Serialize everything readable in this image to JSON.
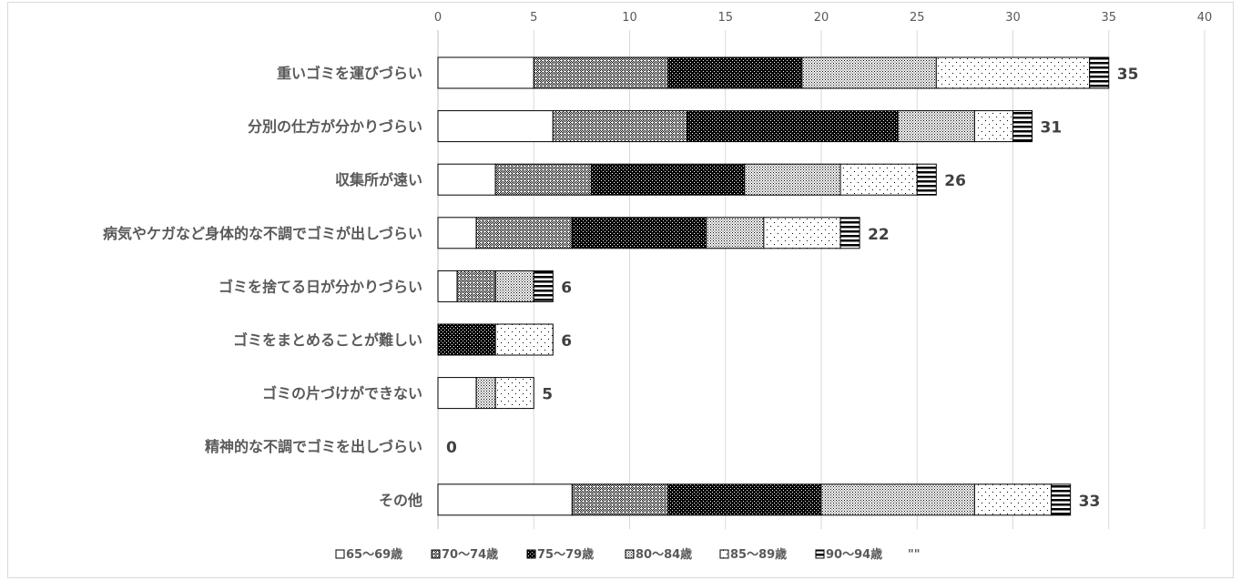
{
  "chart_data": {
    "type": "bar",
    "orientation": "horizontal",
    "stacked": true,
    "title": "",
    "xlabel": "",
    "ylabel": "",
    "xlim": [
      0,
      40
    ],
    "x_ticks": [
      0,
      5,
      10,
      15,
      20,
      25,
      30,
      35,
      40
    ],
    "grid": true,
    "legend_position": "bottom",
    "categories": [
      "重いゴミを運びづらい",
      "分別の仕方が分かりづらい",
      "収集所が遠い",
      "病気やケガなど身体的な不調でゴミが出しづらい",
      "ゴミを捨てる日が分かりづらい",
      "ゴミをまとめることが難しい",
      "ゴミの片づけができない",
      "精神的な不調でゴミを出しづらい",
      "その他"
    ],
    "series": [
      {
        "name": "65～69歳",
        "pattern": "blank",
        "values": [
          5,
          6,
          3,
          2,
          1,
          0,
          2,
          0,
          7
        ]
      },
      {
        "name": "70～74歳",
        "pattern": "crosshatch",
        "values": [
          7,
          7,
          5,
          5,
          2,
          0,
          0,
          0,
          5
        ]
      },
      {
        "name": "75～79歳",
        "pattern": "dark-dots",
        "values": [
          7,
          11,
          8,
          7,
          0,
          3,
          0,
          0,
          8
        ]
      },
      {
        "name": "80～84歳",
        "pattern": "dense-dots",
        "values": [
          7,
          4,
          5,
          3,
          2,
          0,
          1,
          0,
          8
        ]
      },
      {
        "name": "85～89歳",
        "pattern": "sparse-dots",
        "values": [
          8,
          2,
          4,
          4,
          0,
          3,
          2,
          0,
          4
        ]
      },
      {
        "name": "90～94歳",
        "pattern": "horiz-stripes",
        "values": [
          1,
          1,
          1,
          1,
          1,
          0,
          0,
          0,
          1
        ]
      }
    ],
    "totals": [
      35,
      31,
      26,
      22,
      6,
      6,
      5,
      0,
      33
    ],
    "extra_legend_entry": "\"\""
  }
}
